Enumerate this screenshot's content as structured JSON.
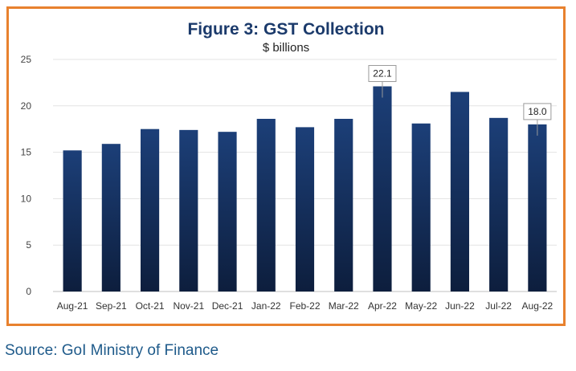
{
  "chart_data": {
    "type": "bar",
    "title": "Figure 3: GST Collection",
    "subtitle": "$ billions",
    "categories": [
      "Aug-21",
      "Sep-21",
      "Oct-21",
      "Nov-21",
      "Dec-21",
      "Jan-22",
      "Feb-22",
      "Mar-22",
      "Apr-22",
      "May-22",
      "Jun-22",
      "Jul-22",
      "Aug-22"
    ],
    "values": [
      15.2,
      15.9,
      17.5,
      17.4,
      17.2,
      18.6,
      17.7,
      18.6,
      22.1,
      18.1,
      21.5,
      18.7,
      18.0
    ],
    "ylim": [
      0,
      25
    ],
    "yticks": [
      0,
      5,
      10,
      15,
      20,
      25
    ],
    "ytick_labels": [
      "0",
      "5",
      "10",
      "15",
      "20",
      "25"
    ],
    "grid": true,
    "data_labels": [
      {
        "index": 8,
        "text": "22.1"
      },
      {
        "index": 12,
        "text": "18.0"
      }
    ],
    "colors": {
      "bar_top": "#1c3f78",
      "bar_bottom": "#0d1e3d",
      "frame": "#e8812e",
      "title": "#1b3a6b",
      "source": "#1e5a8a"
    }
  },
  "source_note": "Source: GoI Ministry of Finance"
}
